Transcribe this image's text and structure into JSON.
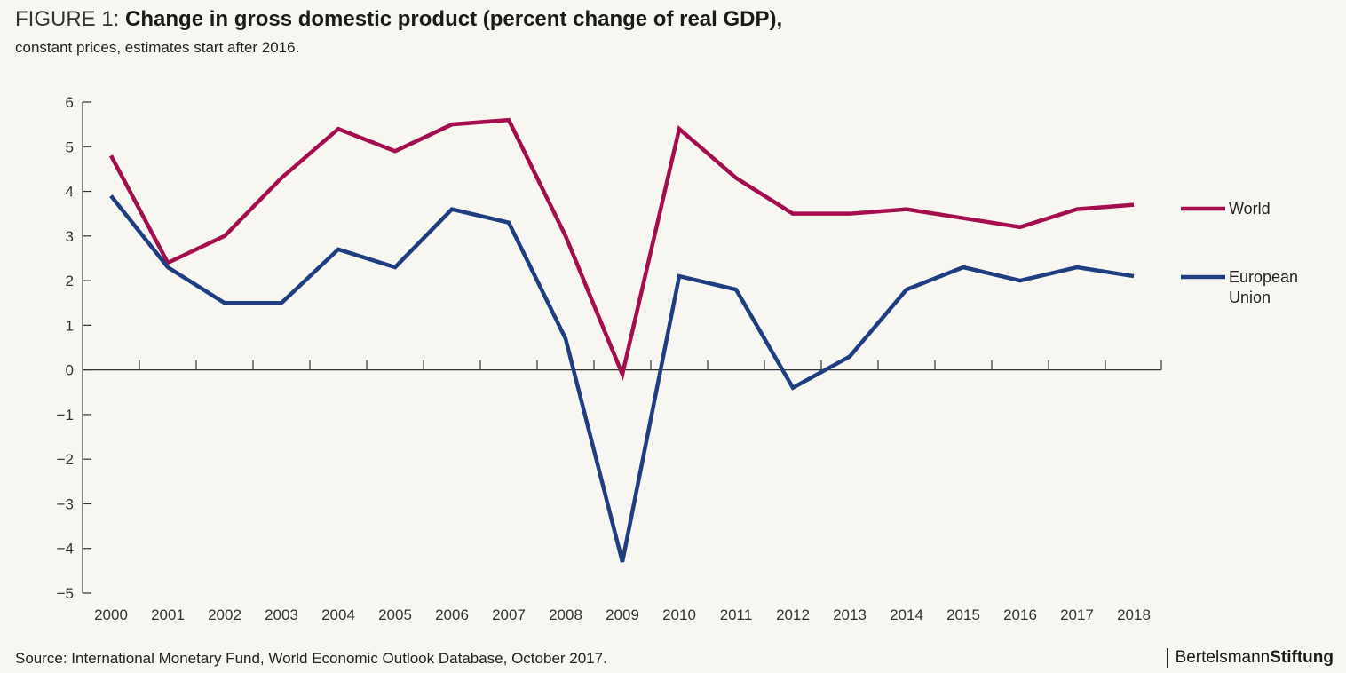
{
  "header": {
    "figure_label": "FIGURE 1: ",
    "title": "Change in gross domestic product (percent change of real GDP),",
    "subtitle": "constant prices, estimates start after 2016."
  },
  "footer": {
    "source": "Source: International Monetary Fund, World Economic Outlook Database, October 2017.",
    "brand_light": "Bertelsmann",
    "brand_bold": "Stiftung"
  },
  "colors": {
    "world": "#a50d4e",
    "eu": "#1f3e82",
    "axis": "#333333"
  },
  "chart_data": {
    "type": "line",
    "title": "Change in gross domestic product (percent change of real GDP), constant prices, estimates start after 2016.",
    "xlabel": "",
    "ylabel": "",
    "x": [
      "2000",
      "2001",
      "2002",
      "2003",
      "2004",
      "2005",
      "2006",
      "2007",
      "2008",
      "2009",
      "2010",
      "2011",
      "2012",
      "2013",
      "2014",
      "2015",
      "2016",
      "2017",
      "2018"
    ],
    "ylim": [
      -5,
      6
    ],
    "yticks": [
      6,
      5,
      4,
      3,
      2,
      1,
      0,
      -1,
      -2,
      -3,
      -4,
      -5
    ],
    "ytick_labels": [
      "6",
      "5",
      "4",
      "3",
      "2",
      "1",
      "0",
      "−1",
      "−2",
      "−3",
      "−4",
      "−5"
    ],
    "grid": false,
    "legend_position": "right",
    "series": [
      {
        "name": "World",
        "legend_lines": [
          "World"
        ],
        "values": [
          4.8,
          2.4,
          3.0,
          4.3,
          5.4,
          4.9,
          5.5,
          5.6,
          3.0,
          -0.1,
          5.4,
          4.3,
          3.5,
          3.5,
          3.6,
          3.4,
          3.2,
          3.6,
          3.7
        ]
      },
      {
        "name": "European Union",
        "legend_lines": [
          "European",
          "Union"
        ],
        "values": [
          3.9,
          2.3,
          1.5,
          1.5,
          2.7,
          2.3,
          3.6,
          3.3,
          0.7,
          -4.3,
          2.1,
          1.8,
          -0.4,
          0.3,
          1.8,
          2.3,
          2.0,
          2.3,
          2.1
        ]
      }
    ]
  }
}
